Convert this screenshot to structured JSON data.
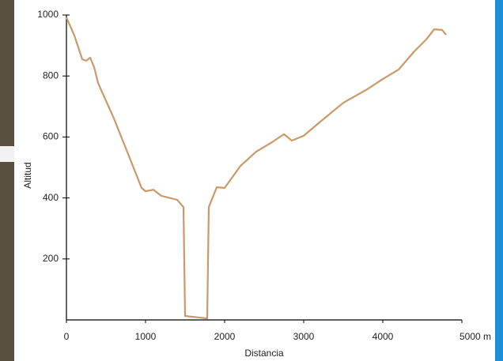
{
  "chart_data": {
    "type": "line",
    "x_label": "Distancia",
    "y_label": "Altitud",
    "x": [
      0,
      100,
      200,
      250,
      300,
      350,
      400,
      600,
      800,
      950,
      1000,
      1100,
      1200,
      1400,
      1480,
      1500,
      1780,
      1800,
      1900,
      2000,
      2200,
      2400,
      2600,
      2750,
      2850,
      3000,
      3200,
      3500,
      3800,
      4000,
      4200,
      4400,
      4550,
      4650,
      4750,
      4800
    ],
    "series": [
      {
        "color": "#c89a6a",
        "values": [
          992,
          933,
          855,
          850,
          860,
          829,
          777,
          661,
          531,
          433,
          422,
          427,
          407,
          394,
          370,
          13,
          5,
          370,
          435,
          433,
          505,
          552,
          583,
          609,
          588,
          604,
          648,
          712,
          756,
          790,
          821,
          881,
          920,
          953,
          951,
          935
        ]
      }
    ],
    "xlim": [
      0,
      5000
    ],
    "ylim": [
      0,
      1000
    ],
    "xticks": [
      0,
      1000,
      2000,
      3000,
      4000,
      {
        "value": 5000,
        "label": "5000 m"
      }
    ],
    "yticks": [
      200,
      400,
      600,
      800,
      1000
    ]
  }
}
